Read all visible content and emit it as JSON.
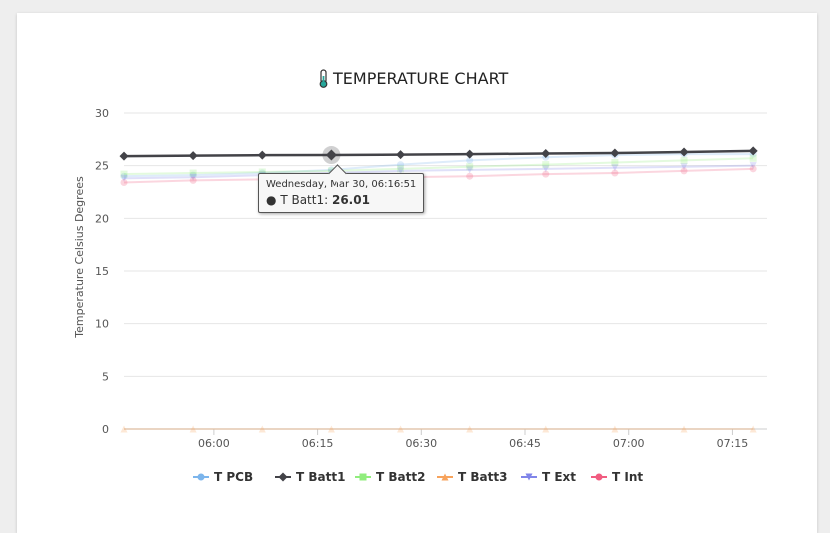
{
  "chart_data": {
    "type": "line",
    "title": "TEMPERATURE CHART",
    "ylabel": "Temperature Celsius Degrees",
    "xlabel": "",
    "ylim": [
      0,
      30
    ],
    "yticks": [
      0,
      5,
      10,
      15,
      20,
      25,
      30
    ],
    "xlim": [
      "05:47",
      "07:20"
    ],
    "xticks": [
      "06:00",
      "06:15",
      "06:30",
      "06:45",
      "07:00",
      "07:15"
    ],
    "x": [
      "05:47",
      "05:57",
      "06:07",
      "06:17",
      "06:27",
      "06:37",
      "06:48",
      "06:58",
      "07:08",
      "07:18"
    ],
    "grid": "horizontal",
    "legend_position": "bottom",
    "series": [
      {
        "name": "T PCB",
        "color": "#7cb5ec",
        "marker": "circle",
        "values": [
          24.0,
          24.1,
          24.3,
          24.6,
          25.1,
          25.5,
          25.8,
          26.0,
          26.1,
          26.1
        ]
      },
      {
        "name": "T Batt1",
        "color": "#434348",
        "marker": "diamond",
        "values": [
          25.9,
          25.95,
          26.0,
          26.01,
          26.05,
          26.1,
          26.15,
          26.2,
          26.3,
          26.4
        ]
      },
      {
        "name": "T Batt2",
        "color": "#90ed7d",
        "marker": "square",
        "values": [
          24.2,
          24.3,
          24.4,
          24.5,
          24.7,
          24.9,
          25.1,
          25.3,
          25.5,
          25.7
        ]
      },
      {
        "name": "T Batt3",
        "color": "#f7a35c",
        "marker": "triangle",
        "values": [
          0,
          0,
          0,
          0,
          0,
          0,
          0,
          0,
          0,
          0
        ]
      },
      {
        "name": "T Ext",
        "color": "#8085e9",
        "marker": "triangle-down",
        "values": [
          23.8,
          23.9,
          24.1,
          24.3,
          24.5,
          24.6,
          24.7,
          24.8,
          24.9,
          25.0
        ]
      },
      {
        "name": "T Int",
        "color": "#f15c80",
        "marker": "circle",
        "values": [
          23.4,
          23.6,
          23.7,
          23.8,
          23.9,
          24.0,
          24.2,
          24.3,
          24.5,
          24.7
        ]
      }
    ],
    "highlight": {
      "series": "T Batt1",
      "index": 3
    },
    "tooltip": {
      "date": "Wednesday, Mar 30, 06:16:51",
      "series_label": "T Batt1:",
      "value": "26.01"
    }
  }
}
